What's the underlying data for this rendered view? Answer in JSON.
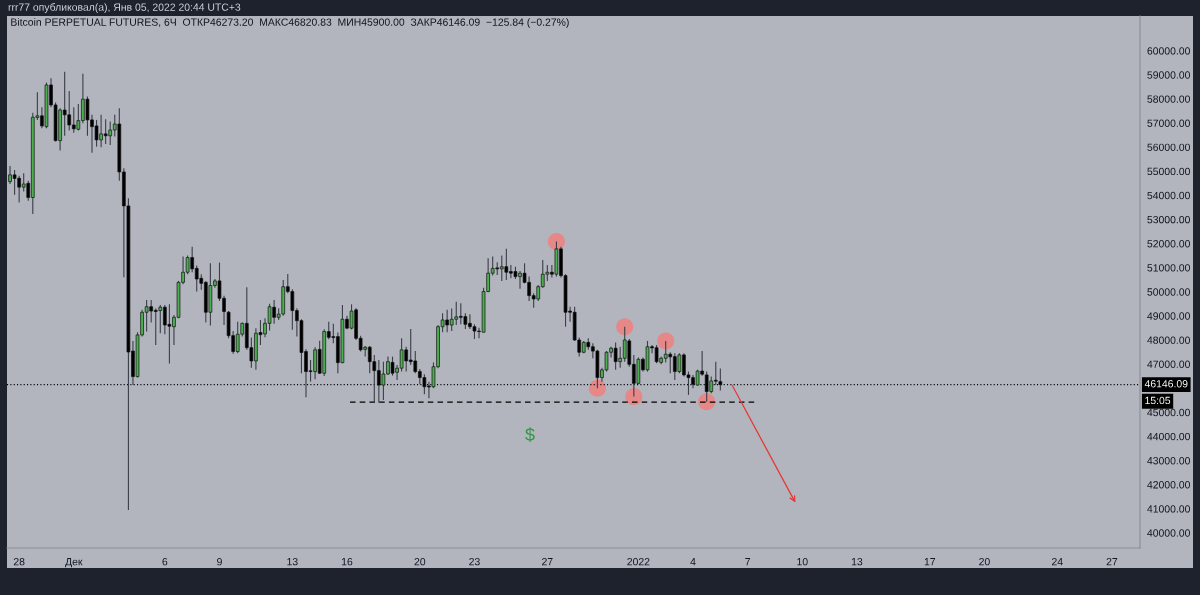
{
  "chart_data": {
    "type": "candlestick",
    "title": "Bitcoin PERPETUAL FUTURES, 6Ч  ОТКР46273.20  МАКС46820.83  МИН45900.00  ЗАКР46146.09  −125.84 (−0.27%)",
    "annotations": [
      "rrr77 опубликовал(а), Янв 05, 2022 20:44 UTC+3",
      "15:05",
      "$"
    ],
    "x": [
      "2021-11-27T12:00",
      "2021-11-27T18:00",
      "2021-11-28T00:00",
      "2021-11-28T06:00",
      "2021-11-28T12:00",
      "2021-11-28T18:00",
      "2021-11-29T00:00",
      "2021-11-29T06:00",
      "2021-11-29T12:00",
      "2021-11-29T18:00",
      "2021-11-30T00:00",
      "2021-11-30T06:00",
      "2021-11-30T12:00",
      "2021-11-30T18:00",
      "2021-12-01T00:00",
      "2021-12-01T06:00",
      "2021-12-01T12:00",
      "2021-12-01T18:00",
      "2021-12-02T00:00",
      "2021-12-02T06:00",
      "2021-12-02T12:00",
      "2021-12-02T18:00",
      "2021-12-03T00:00",
      "2021-12-03T06:00",
      "2021-12-03T12:00",
      "2021-12-03T18:00",
      "2021-12-04T00:00",
      "2021-12-04T06:00",
      "2021-12-04T12:00",
      "2021-12-04T18:00",
      "2021-12-05T00:00",
      "2021-12-05T06:00",
      "2021-12-05T12:00",
      "2021-12-05T18:00",
      "2021-12-06T00:00",
      "2021-12-06T06:00",
      "2021-12-06T12:00",
      "2021-12-06T18:00",
      "2021-12-07T00:00",
      "2021-12-07T06:00",
      "2021-12-07T12:00",
      "2021-12-07T18:00",
      "2021-12-08T00:00",
      "2021-12-08T06:00",
      "2021-12-08T12:00",
      "2021-12-08T18:00",
      "2021-12-09T00:00",
      "2021-12-09T06:00",
      "2021-12-09T12:00",
      "2021-12-09T18:00",
      "2021-12-10T00:00",
      "2021-12-10T06:00",
      "2021-12-10T12:00",
      "2021-12-10T18:00",
      "2021-12-11T00:00",
      "2021-12-11T06:00",
      "2021-12-11T12:00",
      "2021-12-11T18:00",
      "2021-12-12T00:00",
      "2021-12-12T06:00",
      "2021-12-12T12:00",
      "2021-12-12T18:00",
      "2021-12-13T00:00",
      "2021-12-13T06:00",
      "2021-12-13T12:00",
      "2021-12-13T18:00",
      "2021-12-14T00:00",
      "2021-12-14T06:00",
      "2021-12-14T12:00",
      "2021-12-14T18:00",
      "2021-12-15T00:00",
      "2021-12-15T06:00",
      "2021-12-15T12:00",
      "2021-12-15T18:00",
      "2021-12-16T00:00",
      "2021-12-16T06:00",
      "2021-12-16T12:00",
      "2021-12-16T18:00",
      "2021-12-17T00:00",
      "2021-12-17T06:00",
      "2021-12-17T12:00",
      "2021-12-17T18:00",
      "2021-12-18T00:00",
      "2021-12-18T06:00",
      "2021-12-18T12:00",
      "2021-12-18T18:00",
      "2021-12-19T00:00",
      "2021-12-19T06:00",
      "2021-12-19T12:00",
      "2021-12-19T18:00",
      "2021-12-20T00:00",
      "2021-12-20T06:00",
      "2021-12-20T12:00",
      "2021-12-20T18:00",
      "2021-12-21T00:00",
      "2021-12-21T06:00",
      "2021-12-21T12:00",
      "2021-12-21T18:00",
      "2021-12-22T00:00",
      "2021-12-22T06:00",
      "2021-12-22T12:00",
      "2021-12-22T18:00",
      "2021-12-23T00:00",
      "2021-12-23T06:00",
      "2021-12-23T12:00",
      "2021-12-23T18:00",
      "2021-12-24T00:00",
      "2021-12-24T06:00",
      "2021-12-24T12:00",
      "2021-12-24T18:00",
      "2021-12-25T00:00",
      "2021-12-25T06:00",
      "2021-12-25T12:00",
      "2021-12-25T18:00",
      "2021-12-26T00:00",
      "2021-12-26T06:00",
      "2021-12-26T12:00",
      "2021-12-26T18:00",
      "2021-12-27T00:00",
      "2021-12-27T06:00",
      "2021-12-27T12:00",
      "2021-12-27T18:00",
      "2021-12-28T00:00",
      "2021-12-28T06:00",
      "2021-12-28T12:00",
      "2021-12-28T18:00",
      "2021-12-29T00:00",
      "2021-12-29T06:00",
      "2021-12-29T12:00",
      "2021-12-29T18:00",
      "2021-12-30T00:00",
      "2021-12-30T06:00",
      "2021-12-30T12:00",
      "2021-12-30T18:00",
      "2021-12-31T00:00",
      "2021-12-31T06:00",
      "2021-12-31T12:00",
      "2021-12-31T18:00",
      "2022-01-01T00:00",
      "2022-01-01T06:00",
      "2022-01-01T12:00",
      "2022-01-01T18:00",
      "2022-01-02T00:00",
      "2022-01-02T06:00",
      "2022-01-02T12:00",
      "2022-01-02T18:00",
      "2022-01-03T00:00",
      "2022-01-03T06:00",
      "2022-01-03T12:00",
      "2022-01-03T18:00",
      "2022-01-04T00:00",
      "2022-01-04T06:00",
      "2022-01-04T12:00",
      "2022-01-04T18:00",
      "2022-01-05T00:00",
      "2022-01-05T06:00",
      "2022-01-05T12:00"
    ],
    "ohlc": [
      [
        54570,
        55220,
        54470,
        54850
      ],
      [
        54850,
        55050,
        54020,
        54700
      ],
      [
        54710,
        54810,
        53700,
        54340
      ],
      [
        54340,
        54920,
        54160,
        54470
      ],
      [
        54500,
        54610,
        53780,
        53910
      ],
      [
        53910,
        57430,
        53230,
        57240
      ],
      [
        57230,
        58280,
        57130,
        57300
      ],
      [
        57300,
        57650,
        56780,
        56880
      ],
      [
        56850,
        58680,
        56780,
        58580
      ],
      [
        58580,
        58860,
        57650,
        57750
      ],
      [
        57750,
        57850,
        56230,
        56270
      ],
      [
        56270,
        57610,
        55860,
        57540
      ],
      [
        57540,
        59130,
        56470,
        57340
      ],
      [
        57340,
        58330,
        56690,
        56920
      ],
      [
        56920,
        57650,
        56600,
        56760
      ],
      [
        56740,
        57790,
        56690,
        57100
      ],
      [
        57100,
        59040,
        56990,
        57990
      ],
      [
        57990,
        58100,
        56470,
        57130
      ],
      [
        57130,
        57340,
        55770,
        56850
      ],
      [
        56880,
        57130,
        56020,
        56300
      ],
      [
        56300,
        57340,
        56000,
        56550
      ],
      [
        56550,
        57160,
        56130,
        56470
      ],
      [
        56470,
        57060,
        56090,
        56710
      ],
      [
        56710,
        57340,
        56440,
        56960
      ],
      [
        56960,
        57610,
        54610,
        54970
      ],
      [
        54970,
        55120,
        50600,
        53560
      ],
      [
        53560,
        53880,
        40950,
        47500
      ],
      [
        47540,
        47960,
        46130,
        46480
      ],
      [
        46480,
        48320,
        46440,
        48210
      ],
      [
        48210,
        49250,
        48140,
        49150
      ],
      [
        49150,
        49660,
        48350,
        49380
      ],
      [
        49380,
        49660,
        48730,
        49200
      ],
      [
        49230,
        49310,
        47790,
        49180
      ],
      [
        49220,
        49450,
        48280,
        49360
      ],
      [
        49360,
        49450,
        48240,
        48620
      ],
      [
        48650,
        49480,
        47020,
        48570
      ],
      [
        48550,
        49040,
        47790,
        48940
      ],
      [
        48940,
        50450,
        48900,
        50390
      ],
      [
        50390,
        51460,
        50310,
        50810
      ],
      [
        50810,
        51500,
        50730,
        51420
      ],
      [
        51420,
        51870,
        50810,
        50950
      ],
      [
        50970,
        51090,
        50010,
        50530
      ],
      [
        50560,
        50730,
        50080,
        50350
      ],
      [
        50390,
        50450,
        48730,
        49150
      ],
      [
        49150,
        51180,
        48600,
        50260
      ],
      [
        50260,
        50530,
        50170,
        50450
      ],
      [
        50450,
        51210,
        49620,
        49730
      ],
      [
        49730,
        49830,
        48620,
        49180
      ],
      [
        49150,
        49200,
        48070,
        48180
      ],
      [
        48180,
        48370,
        47430,
        47520
      ],
      [
        47520,
        48760,
        47450,
        48240
      ],
      [
        48240,
        48730,
        48140,
        48690
      ],
      [
        48690,
        50190,
        47590,
        47680
      ],
      [
        47680,
        48100,
        46850,
        47130
      ],
      [
        47130,
        48490,
        46760,
        48280
      ],
      [
        48310,
        48830,
        47790,
        48220
      ],
      [
        48250,
        48900,
        48110,
        48690
      ],
      [
        48690,
        49500,
        48390,
        49380
      ],
      [
        49360,
        49660,
        48670,
        48940
      ],
      [
        48940,
        49320,
        48830,
        49070
      ],
      [
        49080,
        50490,
        49000,
        50210
      ],
      [
        50210,
        50740,
        49940,
        50010
      ],
      [
        50010,
        50100,
        48420,
        49220
      ],
      [
        49220,
        49320,
        48140,
        48800
      ],
      [
        48800,
        48860,
        46620,
        47480
      ],
      [
        47520,
        47610,
        45620,
        46690
      ],
      [
        46720,
        47170,
        46270,
        46690
      ],
      [
        46690,
        47700,
        46370,
        47590
      ],
      [
        47610,
        47970,
        46590,
        46620
      ],
      [
        46620,
        48440,
        46510,
        48350
      ],
      [
        48350,
        48760,
        48030,
        48110
      ],
      [
        48140,
        48670,
        47860,
        48100
      ],
      [
        48140,
        48310,
        46620,
        47060
      ],
      [
        47060,
        49450,
        47030,
        48860
      ],
      [
        48860,
        49000,
        48440,
        48490
      ],
      [
        48490,
        49480,
        48440,
        49200
      ],
      [
        49250,
        49320,
        48000,
        48070
      ],
      [
        48070,
        48170,
        47520,
        47590
      ],
      [
        47610,
        47750,
        47310,
        47700
      ],
      [
        47700,
        47750,
        46620,
        47100
      ],
      [
        47100,
        47380,
        45400,
        46730
      ],
      [
        46730,
        47170,
        45400,
        46130
      ],
      [
        46130,
        47100,
        45510,
        46590
      ],
      [
        46590,
        47310,
        46550,
        47100
      ],
      [
        47070,
        47310,
        46520,
        46620
      ],
      [
        46660,
        46960,
        46340,
        46830
      ],
      [
        46830,
        48070,
        46690,
        47590
      ],
      [
        47590,
        47720,
        46690,
        47130
      ],
      [
        47170,
        48460,
        46960,
        47100
      ],
      [
        47130,
        47540,
        46620,
        46690
      ],
      [
        46690,
        46800,
        46160,
        46440
      ],
      [
        46440,
        46580,
        45750,
        46060
      ],
      [
        46090,
        46270,
        45580,
        46050
      ],
      [
        46060,
        47070,
        46000,
        46890
      ],
      [
        46890,
        48620,
        46830,
        48550
      ],
      [
        48550,
        49110,
        48320,
        48830
      ],
      [
        48830,
        49250,
        48320,
        48620
      ],
      [
        48620,
        49310,
        48370,
        48860
      ],
      [
        48860,
        49590,
        48620,
        48960
      ],
      [
        48980,
        49520,
        48650,
        48940
      ],
      [
        48970,
        49110,
        48460,
        48650
      ],
      [
        48690,
        49070,
        48460,
        48550
      ],
      [
        48550,
        48650,
        48040,
        48370
      ],
      [
        48370,
        48510,
        48070,
        48350
      ],
      [
        48320,
        50170,
        48320,
        50010
      ],
      [
        50010,
        51390,
        49980,
        50770
      ],
      [
        50770,
        51460,
        50670,
        50970
      ],
      [
        50990,
        51220,
        50700,
        50950
      ],
      [
        50950,
        51500,
        50450,
        51040
      ],
      [
        51040,
        51780,
        50490,
        50810
      ],
      [
        50840,
        51110,
        50560,
        50770
      ],
      [
        50840,
        51040,
        50530,
        50630
      ],
      [
        50630,
        50860,
        50120,
        50770
      ],
      [
        50770,
        51180,
        50350,
        50390
      ],
      [
        50390,
        50630,
        49620,
        49840
      ],
      [
        49840,
        49940,
        49340,
        49700
      ],
      [
        49700,
        50280,
        49620,
        50210
      ],
      [
        50210,
        51320,
        50170,
        50730
      ],
      [
        50730,
        51110,
        50450,
        50810
      ],
      [
        50810,
        51110,
        50590,
        50730
      ],
      [
        50730,
        52080,
        50630,
        51780
      ],
      [
        51780,
        51870,
        50590,
        50670
      ],
      [
        50670,
        50730,
        48550,
        49150
      ],
      [
        49200,
        49380,
        48760,
        49150
      ],
      [
        49150,
        49380,
        47960,
        48000
      ],
      [
        48000,
        48100,
        47310,
        47490
      ],
      [
        47490,
        47960,
        47450,
        47900
      ],
      [
        47900,
        48070,
        47590,
        47720
      ],
      [
        47720,
        47860,
        47240,
        47540
      ],
      [
        47540,
        47590,
        46000,
        46440
      ],
      [
        46440,
        46850,
        46270,
        46760
      ],
      [
        46760,
        47540,
        46690,
        47490
      ],
      [
        47490,
        47720,
        47270,
        47660
      ],
      [
        47660,
        47900,
        46760,
        47100
      ],
      [
        47100,
        47720,
        46850,
        47240
      ],
      [
        47240,
        48550,
        47100,
        48000
      ],
      [
        47960,
        48040,
        46890,
        46990
      ],
      [
        46990,
        47380,
        45650,
        46200
      ],
      [
        46200,
        47270,
        46160,
        47200
      ],
      [
        47200,
        47270,
        46690,
        46760
      ],
      [
        46760,
        47960,
        46690,
        47720
      ],
      [
        47720,
        47790,
        47450,
        47670
      ],
      [
        47680,
        47790,
        47030,
        47100
      ],
      [
        47070,
        47310,
        46990,
        47240
      ],
      [
        47240,
        47960,
        47070,
        47410
      ],
      [
        47410,
        47490,
        46620,
        47300
      ],
      [
        47310,
        47450,
        46340,
        46690
      ],
      [
        46690,
        47450,
        46620,
        47380
      ],
      [
        47380,
        47450,
        46480,
        46550
      ],
      [
        46550,
        46690,
        45720,
        46440
      ],
      [
        46440,
        46550,
        46000,
        46160
      ],
      [
        46130,
        46760,
        46110,
        46710
      ],
      [
        46710,
        47540,
        46520,
        46580
      ],
      [
        46550,
        46690,
        45440,
        45860
      ],
      [
        45860,
        46480,
        45790,
        46300
      ],
      [
        46330,
        47100,
        46130,
        46290
      ],
      [
        46273.2,
        46820.83,
        45900.0,
        46146.09
      ]
    ],
    "colors": [
      "#4caf50",
      "#000000",
      "#000000",
      "#4caf50",
      "#000000",
      "#4caf50",
      "#4caf50",
      "#000000",
      "#4caf50",
      "#000000",
      "#000000",
      "#4caf50",
      "#000000",
      "#000000",
      "#000000",
      "#4caf50",
      "#4caf50",
      "#000000",
      "#000000",
      "#000000",
      "#4caf50",
      "#000000",
      "#4caf50",
      "#4caf50",
      "#000000",
      "#000000",
      "#000000",
      "#000000",
      "#4caf50",
      "#4caf50",
      "#4caf50",
      "#000000",
      "#000000",
      "#4caf50",
      "#000000",
      "#000000",
      "#4caf50",
      "#4caf50",
      "#4caf50",
      "#4caf50",
      "#000000",
      "#000000",
      "#000000",
      "#000000",
      "#4caf50",
      "#4caf50",
      "#000000",
      "#000000",
      "#000000",
      "#000000",
      "#4caf50",
      "#4caf50",
      "#000000",
      "#000000",
      "#4caf50",
      "#000000",
      "#4caf50",
      "#4caf50",
      "#000000",
      "#4caf50",
      "#4caf50",
      "#000000",
      "#000000",
      "#000000",
      "#000000",
      "#000000",
      "#000000",
      "#4caf50",
      "#000000",
      "#4caf50",
      "#000000",
      "#000000",
      "#000000",
      "#4caf50",
      "#000000",
      "#4caf50",
      "#000000",
      "#000000",
      "#4caf50",
      "#000000",
      "#000000",
      "#000000",
      "#4caf50",
      "#4caf50",
      "#000000",
      "#4caf50",
      "#4caf50",
      "#000000",
      "#000000",
      "#000000",
      "#000000",
      "#000000",
      "#000000",
      "#4caf50",
      "#4caf50",
      "#4caf50",
      "#000000",
      "#4caf50",
      "#4caf50",
      "#000000",
      "#000000",
      "#000000",
      "#000000",
      "#000000",
      "#4caf50",
      "#4caf50",
      "#4caf50",
      "#000000",
      "#4caf50",
      "#000000",
      "#000000",
      "#000000",
      "#4caf50",
      "#000000",
      "#000000",
      "#000000",
      "#4caf50",
      "#4caf50",
      "#4caf50",
      "#000000",
      "#4caf50",
      "#000000",
      "#000000",
      "#000000",
      "#000000",
      "#000000",
      "#4caf50",
      "#000000",
      "#000000",
      "#000000",
      "#4caf50",
      "#4caf50",
      "#4caf50",
      "#000000",
      "#4caf50",
      "#4caf50",
      "#000000",
      "#000000",
      "#4caf50",
      "#000000",
      "#4caf50",
      "#000000",
      "#000000",
      "#4caf50",
      "#4caf50",
      "#000000",
      "#000000",
      "#4caf50",
      "#000000",
      "#000000",
      "#000000",
      "#4caf50",
      "#000000",
      "#000000",
      "#4caf50",
      "#000000",
      "#000000"
    ],
    "series": [
      {
        "type": "scatter",
        "color": "#ee7f7f",
        "marker": "circle",
        "x": [
          "2021-12-27T12:00",
          "2021-12-29T18:00",
          "2021-12-31T06:00",
          "2021-12-31T18:00",
          "2022-01-02T12:00",
          "2022-01-04T18:00"
        ],
        "values": [
          52080,
          46000,
          48550,
          45650,
          47960,
          45440
        ]
      },
      {
        "type": "line",
        "color": "#000000",
        "line_style": "dashed",
        "x": [
          "2021-12-16T04:00",
          "2022-01-07T12:00"
        ],
        "values": [
          45420,
          45420
        ]
      }
    ],
    "ref_lines": [
      {
        "axis": "y",
        "value": 46146.09,
        "label": "46146.09",
        "color": "#000000",
        "line_style": "dotted"
      }
    ],
    "xlim": [
      "2021-11-27T08:00",
      "2022-01-28T13:00"
    ],
    "xticks": [
      {
        "value": "2021-11-28",
        "label": "28"
      },
      {
        "value": "2021-12-01",
        "label": "Дек"
      },
      {
        "value": "2021-12-06",
        "label": "6"
      },
      {
        "value": "2021-12-09",
        "label": "9"
      },
      {
        "value": "2021-12-13",
        "label": "13"
      },
      {
        "value": "2021-12-16",
        "label": "16"
      },
      {
        "value": "2021-12-20",
        "label": "20"
      },
      {
        "value": "2021-12-23",
        "label": "23"
      },
      {
        "value": "2021-12-27",
        "label": "27"
      },
      {
        "value": "2022-01-01",
        "label": "2022"
      },
      {
        "value": "2022-01-04",
        "label": "4"
      },
      {
        "value": "2022-01-07",
        "label": "7"
      },
      {
        "value": "2022-01-10",
        "label": "10"
      },
      {
        "value": "2022-01-13",
        "label": "13"
      },
      {
        "value": "2022-01-17",
        "label": "17"
      },
      {
        "value": "2022-01-20",
        "label": "20"
      },
      {
        "value": "2022-01-24",
        "label": "24"
      },
      {
        "value": "2022-01-27",
        "label": "27"
      }
    ],
    "ylim": [
      39370,
      61440
    ],
    "yticks": [
      {
        "value": 40000,
        "label": "40000.00"
      },
      {
        "value": 41000,
        "label": "41000.00"
      },
      {
        "value": 42000,
        "label": "42000.00"
      },
      {
        "value": 43000,
        "label": "43000.00"
      },
      {
        "value": 44000,
        "label": "44000.00"
      },
      {
        "value": 45000,
        "label": "45000.00"
      },
      {
        "value": 47000,
        "label": "47000.00"
      },
      {
        "value": 48000,
        "label": "48000.00"
      },
      {
        "value": 49000,
        "label": "49000.00"
      },
      {
        "value": 50000,
        "label": "50000.00"
      },
      {
        "value": 51000,
        "label": "51000.00"
      },
      {
        "value": 52000,
        "label": "52000.00"
      },
      {
        "value": 53000,
        "label": "53000.00"
      },
      {
        "value": 54000,
        "label": "54000.00"
      },
      {
        "value": 55000,
        "label": "55000.00"
      },
      {
        "value": 56000,
        "label": "56000.00"
      },
      {
        "value": 57000,
        "label": "57000.00"
      },
      {
        "value": 58000,
        "label": "58000.00"
      },
      {
        "value": 59000,
        "label": "59000.00"
      },
      {
        "value": 60000,
        "label": "60000.00"
      }
    ]
  }
}
